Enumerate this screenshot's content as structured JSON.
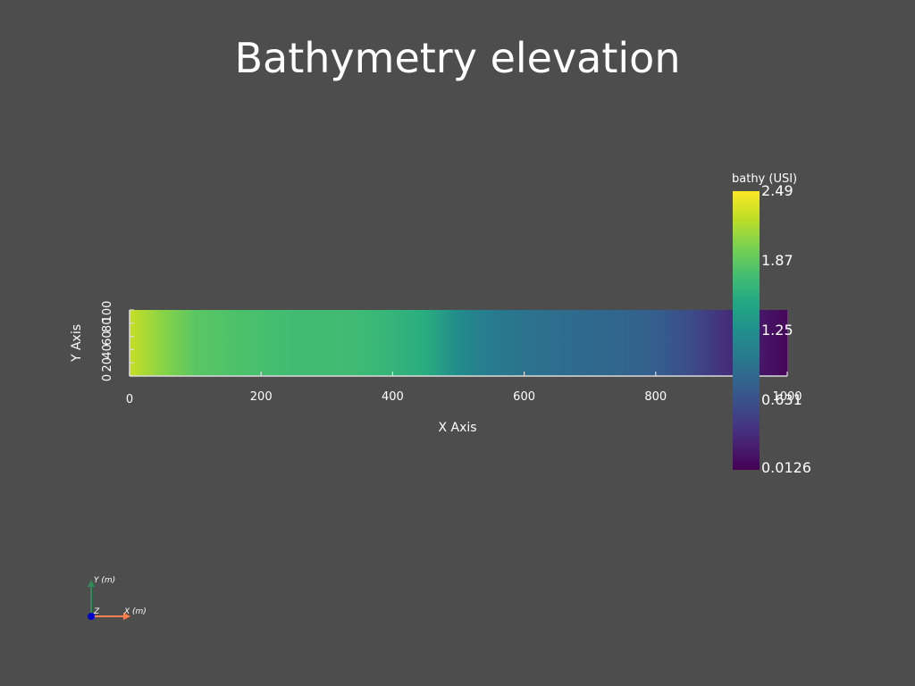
{
  "title": "Bathymetry elevation",
  "chart_data": {
    "type": "heatmap",
    "title": "Bathymetry elevation",
    "xlabel": "X Axis",
    "ylabel": "Y Axis",
    "xlim": [
      0,
      1000
    ],
    "ylim": [
      0,
      100
    ],
    "x_ticks": [
      "0",
      "200",
      "400",
      "600",
      "800",
      "1000"
    ],
    "y_ticks": [
      "0",
      "20",
      "40",
      "60",
      "80",
      "100"
    ],
    "colormap": "viridis",
    "field": {
      "x": [
        0,
        50,
        100,
        150,
        200,
        250,
        300,
        350,
        400,
        450,
        500,
        550,
        600,
        650,
        700,
        750,
        800,
        850,
        900,
        950,
        1000
      ],
      "value": [
        2.28,
        2.05,
        1.85,
        1.8,
        1.76,
        1.72,
        1.72,
        1.7,
        1.64,
        1.55,
        1.2,
        1.02,
        0.96,
        0.9,
        0.86,
        0.82,
        0.76,
        0.6,
        0.38,
        0.2,
        0.05
      ]
    },
    "colorbar": {
      "title": "bathy  (USI)",
      "range": [
        0.0126,
        2.49
      ],
      "tick_labels": [
        "2.49",
        "1.87",
        "1.25",
        "0.631",
        "0.0126"
      ]
    }
  },
  "orientation_axes": {
    "x_label": "X (m)",
    "y_label": "Y (m)",
    "z_label": "Z",
    "colors": {
      "x": "#ff7f50",
      "y": "#2e8b57",
      "z": "#0000cd"
    }
  },
  "colors": {
    "background": "#4d4d4d",
    "text": "#ffffff",
    "axis": "#dcdcdc"
  }
}
